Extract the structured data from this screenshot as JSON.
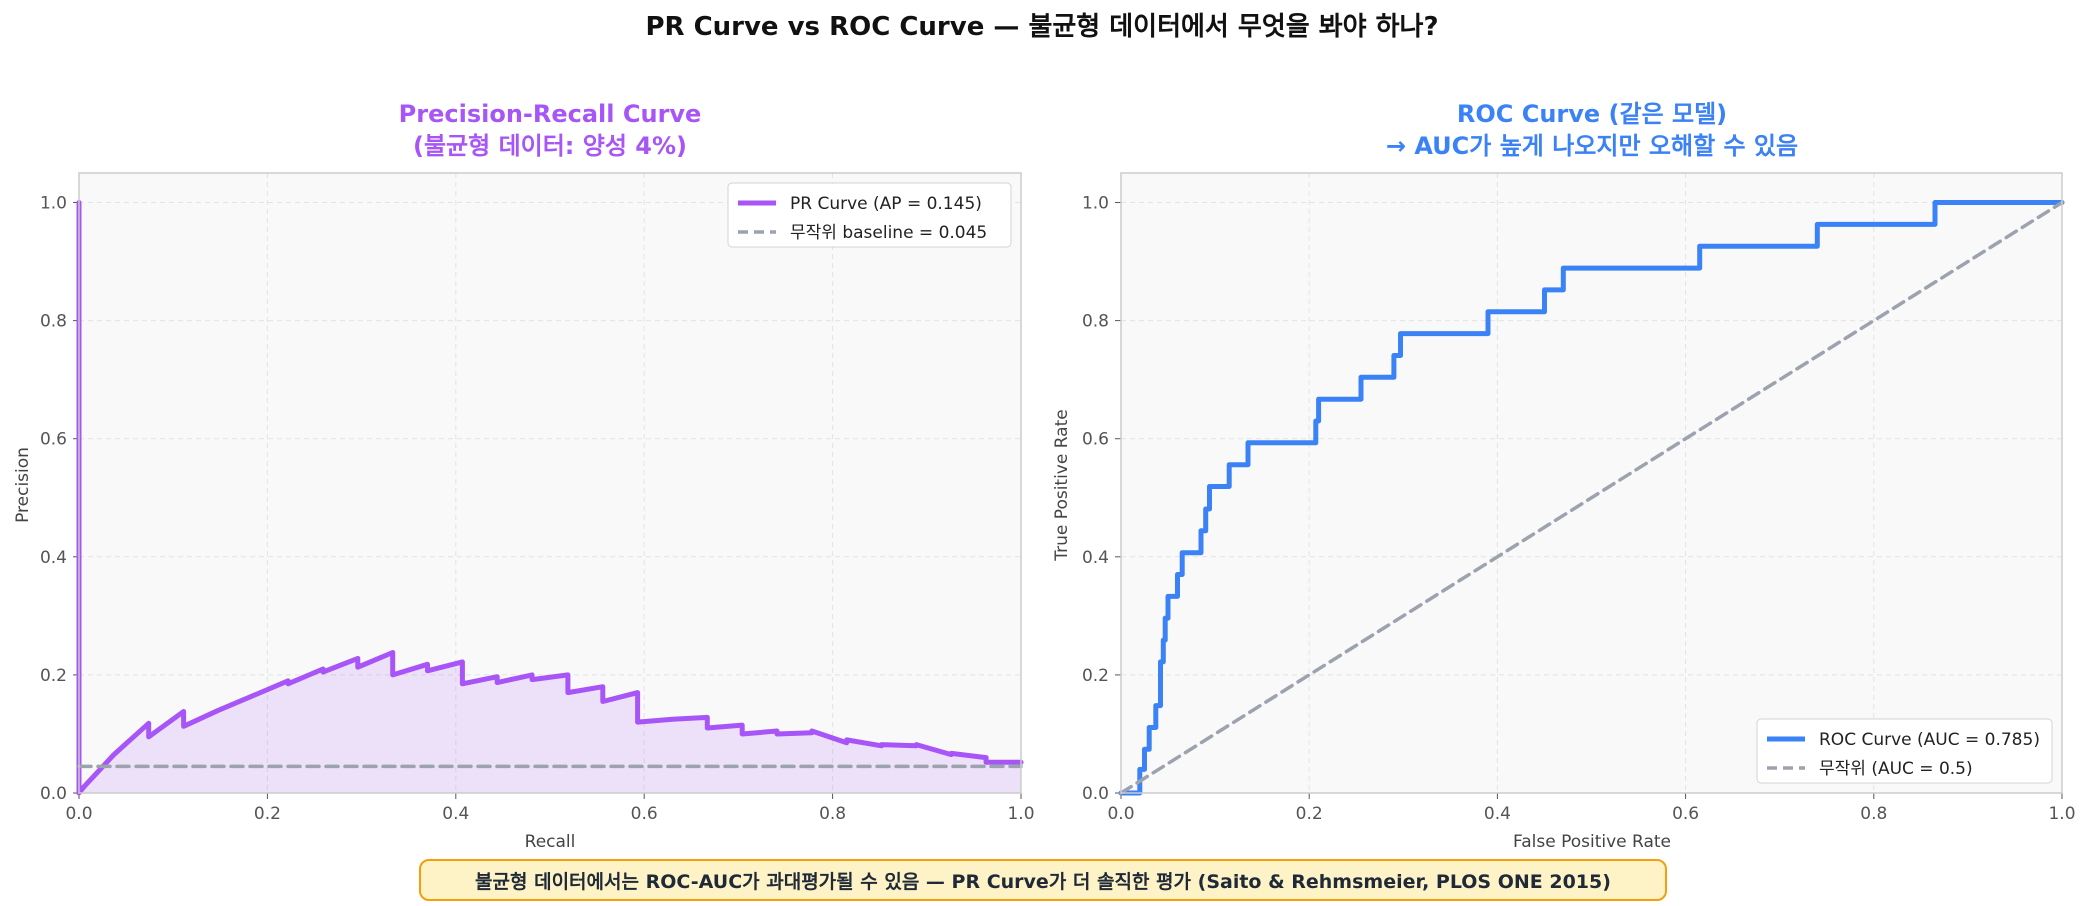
{
  "figure": {
    "suptitle": "PR Curve vs ROC Curve — 불균형 데이터에서 무엇을 봐야 하나?",
    "footnote": "불균형 데이터에서는 ROC-AUC가 과대평가될 수 있음 — PR Curve가 더 솔직한 평가 (Saito & Rehmsmeier, PLOS ONE 2015)"
  },
  "colors": {
    "pr": "#a855f7",
    "roc": "#3b82f6",
    "baseline": "#9ca3af",
    "plot_bg": "#f9f9f9",
    "note_bg": "#fef3c7",
    "note_border": "#f59e0b"
  },
  "chart_data": [
    {
      "type": "line",
      "title_line1": "Precision-Recall Curve",
      "title_line2": "(불균형 데이터: 양성 4%)",
      "xlabel": "Recall",
      "ylabel": "Precision",
      "xlim": [
        0,
        1
      ],
      "ylim": [
        0,
        1.05
      ],
      "xticks": [
        "0.0",
        "0.2",
        "0.4",
        "0.6",
        "0.8",
        "1.0"
      ],
      "yticks": [
        "0.0",
        "0.2",
        "0.4",
        "0.6",
        "0.8",
        "1.0"
      ],
      "grid": true,
      "legend_position": "top-right",
      "series": [
        {
          "name": "PR Curve (AP = 0.145)",
          "style": "solid",
          "fill": true,
          "x": [
            0,
            0,
            0.005,
            0.037,
            0.074,
            0.074,
            0.111,
            0.111,
            0.148,
            0.185,
            0.222,
            0.222,
            0.259,
            0.259,
            0.296,
            0.296,
            0.333,
            0.333,
            0.37,
            0.37,
            0.407,
            0.407,
            0.444,
            0.444,
            0.481,
            0.481,
            0.519,
            0.519,
            0.556,
            0.556,
            0.593,
            0.593,
            0.63,
            0.667,
            0.667,
            0.704,
            0.704,
            0.741,
            0.741,
            0.778,
            0.778,
            0.815,
            0.815,
            0.852,
            0.852,
            0.889,
            0.889,
            0.926,
            0.926,
            0.963,
            0.963,
            1.0
          ],
          "y": [
            1.0,
            0.0,
            0.01,
            0.065,
            0.118,
            0.095,
            0.138,
            0.113,
            0.14,
            0.165,
            0.19,
            0.185,
            0.21,
            0.205,
            0.228,
            0.213,
            0.238,
            0.2,
            0.218,
            0.207,
            0.222,
            0.185,
            0.197,
            0.187,
            0.2,
            0.192,
            0.2,
            0.17,
            0.18,
            0.155,
            0.17,
            0.12,
            0.125,
            0.128,
            0.11,
            0.115,
            0.1,
            0.105,
            0.1,
            0.102,
            0.105,
            0.085,
            0.09,
            0.08,
            0.082,
            0.08,
            0.082,
            0.065,
            0.067,
            0.06,
            0.052,
            0.052
          ]
        },
        {
          "name": "무작위 baseline = 0.045",
          "style": "dashed",
          "x": [
            0,
            1
          ],
          "y": [
            0.045,
            0.045
          ]
        }
      ]
    },
    {
      "type": "line",
      "title_line1": "ROC Curve (같은 모델)",
      "title_line2": "→ AUC가 높게 나오지만 오해할 수 있음",
      "xlabel": "False Positive Rate",
      "ylabel": "True Positive Rate",
      "xlim": [
        0,
        1
      ],
      "ylim": [
        0,
        1.05
      ],
      "xticks": [
        "0.0",
        "0.2",
        "0.4",
        "0.6",
        "0.8",
        "1.0"
      ],
      "yticks": [
        "0.0",
        "0.2",
        "0.4",
        "0.6",
        "0.8",
        "1.0"
      ],
      "grid": true,
      "legend_position": "bottom-right",
      "series": [
        {
          "name": "ROC Curve (AUC = 0.785)",
          "style": "solid",
          "x": [
            0,
            0.02,
            0.02,
            0.025,
            0.025,
            0.03,
            0.03,
            0.037,
            0.037,
            0.042,
            0.042,
            0.045,
            0.045,
            0.047,
            0.047,
            0.05,
            0.05,
            0.06,
            0.06,
            0.065,
            0.065,
            0.07,
            0.07,
            0.085,
            0.085,
            0.09,
            0.09,
            0.094,
            0.094,
            0.115,
            0.115,
            0.135,
            0.135,
            0.207,
            0.207,
            0.21,
            0.21,
            0.255,
            0.255,
            0.29,
            0.29,
            0.297,
            0.297,
            0.39,
            0.39,
            0.45,
            0.45,
            0.47,
            0.47,
            0.615,
            0.615,
            0.74,
            0.74,
            0.865,
            0.865,
            1.0
          ],
          "y": [
            0,
            0,
            0.04,
            0.04,
            0.074,
            0.074,
            0.111,
            0.111,
            0.148,
            0.148,
            0.222,
            0.222,
            0.259,
            0.259,
            0.296,
            0.296,
            0.333,
            0.333,
            0.37,
            0.37,
            0.407,
            0.407,
            0.407,
            0.407,
            0.444,
            0.444,
            0.481,
            0.481,
            0.519,
            0.519,
            0.556,
            0.556,
            0.593,
            0.593,
            0.63,
            0.63,
            0.667,
            0.667,
            0.704,
            0.704,
            0.741,
            0.741,
            0.778,
            0.778,
            0.815,
            0.815,
            0.852,
            0.852,
            0.889,
            0.889,
            0.926,
            0.926,
            0.963,
            0.963,
            1.0,
            1.0
          ]
        },
        {
          "name": "무작위 (AUC = 0.5)",
          "style": "dashed",
          "x": [
            0,
            1
          ],
          "y": [
            0,
            1
          ]
        }
      ]
    }
  ]
}
